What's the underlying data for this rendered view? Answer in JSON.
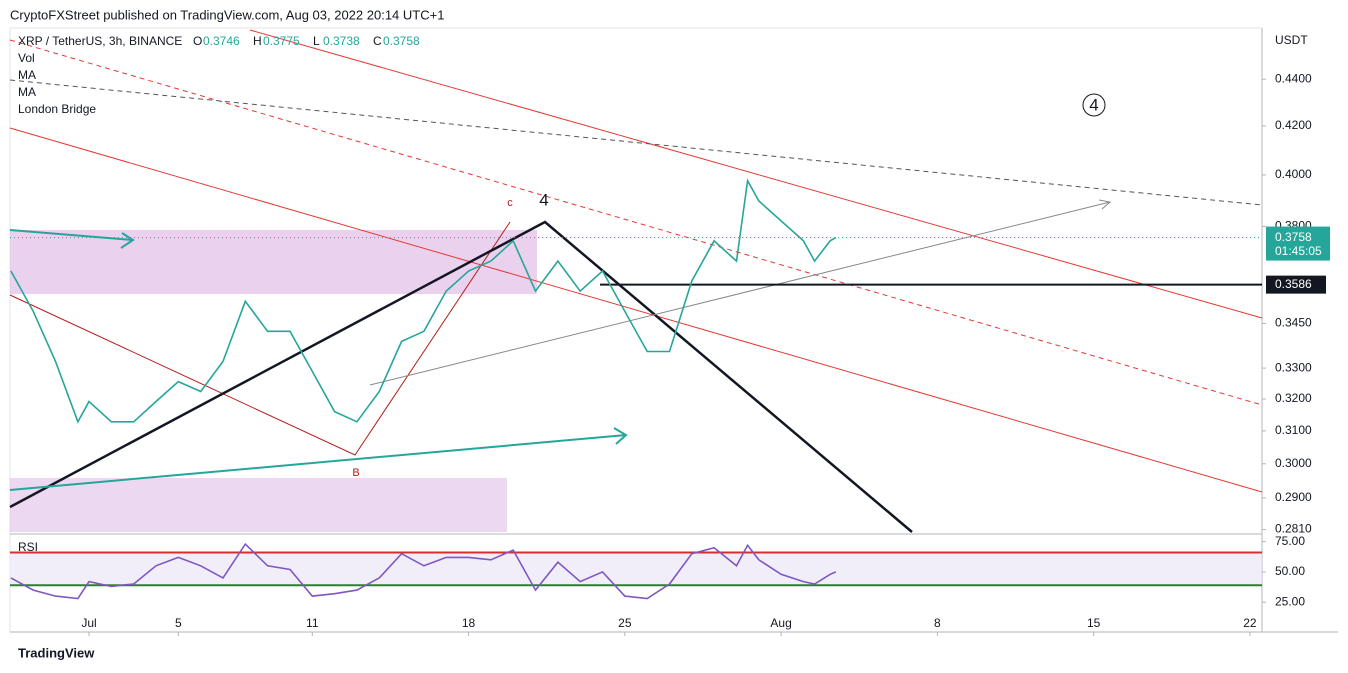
{
  "header": {
    "publisher": "CryptoFXStreet published on TradingView.com, Aug 03, 2022 20:14 UTC+1"
  },
  "legend": {
    "symbol": "XRP / TetherUS, 3h, BINANCE",
    "ohlc": [
      {
        "label": "O",
        "value": "0.3746"
      },
      {
        "label": "H",
        "value": "0.3775"
      },
      {
        "label": "L",
        "value": "0.3738"
      },
      {
        "label": "C",
        "value": "0.3758"
      }
    ],
    "indicators": [
      "Vol",
      "MA",
      "MA",
      "London Bridge"
    ]
  },
  "chart_data": [
    {
      "type": "line",
      "y_axis_title": "USDT",
      "color": "#26a69a",
      "log_scale": true,
      "x": [
        -2.5,
        -1.5,
        -0.5,
        0.5,
        1,
        2,
        3,
        4,
        5,
        6,
        7,
        8,
        9,
        10,
        11,
        12,
        13,
        14,
        15,
        16,
        17,
        18,
        19,
        20,
        21,
        22,
        23,
        24,
        25,
        26,
        27,
        28,
        29,
        30,
        30.5,
        31,
        32,
        33,
        33.5,
        34.2,
        34.45
      ],
      "values": [
        0.3635,
        0.3492,
        0.3322,
        0.3128,
        0.3192,
        0.3128,
        0.3128,
        0.3192,
        0.3256,
        0.3224,
        0.3322,
        0.3527,
        0.3423,
        0.3423,
        0.3289,
        0.316,
        0.3128,
        0.3224,
        0.3389,
        0.3423,
        0.3563,
        0.3635,
        0.3671,
        0.3746,
        0.3563,
        0.3671,
        0.3563,
        0.3635,
        0.3492,
        0.3355,
        0.3355,
        0.3599,
        0.3746,
        0.3671,
        0.3977,
        0.3898,
        0.3821,
        0.3746,
        0.3671,
        0.3746,
        0.3758
      ],
      "xlim": [
        -2.54,
        53.54
      ],
      "ylim": [
        0.2803,
        0.4621
      ],
      "yticks": [
        {
          "value": 0.44,
          "label": "0.4400"
        },
        {
          "value": 0.42,
          "label": "0.4200"
        },
        {
          "value": 0.4,
          "label": "0.4000"
        },
        {
          "value": 0.38,
          "label": "0.3800"
        },
        {
          "value": 0.345,
          "label": "0.3450"
        },
        {
          "value": 0.33,
          "label": "0.3300"
        },
        {
          "value": 0.32,
          "label": "0.3200"
        },
        {
          "value": 0.31,
          "label": "0.3100"
        },
        {
          "value": 0.3,
          "label": "0.3000"
        },
        {
          "value": 0.29,
          "label": "0.2900"
        },
        {
          "value": 0.281,
          "label": "0.2810"
        }
      ],
      "last_price": {
        "value": 0.3758,
        "label": "0.3758"
      },
      "countdown": "01:45:05",
      "level": {
        "value": 0.3586,
        "label": "0.3586"
      },
      "annotations": [
        "c",
        "4",
        "B",
        "4"
      ]
    },
    {
      "type": "line",
      "title": "RSI",
      "color": "#7e57c2",
      "x": [
        -2.5,
        -1.5,
        -0.5,
        0.5,
        1,
        2,
        3,
        4,
        5,
        6,
        7,
        8,
        9,
        10,
        11,
        12,
        13,
        14,
        15,
        16,
        17,
        18,
        19,
        20,
        21,
        22,
        23,
        24,
        25,
        26,
        27,
        28,
        29,
        30,
        30.5,
        31,
        32,
        33,
        33.5,
        34.2,
        34.45
      ],
      "values": [
        45,
        35,
        30,
        28,
        42,
        38,
        40,
        55,
        62,
        55,
        45,
        73,
        55,
        52,
        30,
        32,
        35,
        45,
        65,
        55,
        62,
        62,
        60,
        68,
        35,
        58,
        42,
        50,
        30,
        28,
        40,
        65,
        70,
        55,
        72,
        60,
        48,
        42,
        40,
        48,
        50
      ],
      "xlim": [
        -2.54,
        53.54
      ],
      "ylim": [
        2,
        78
      ],
      "yticks": [
        {
          "value": 75,
          "label": "75.00"
        },
        {
          "value": 50,
          "label": "50.00"
        },
        {
          "value": 25,
          "label": "25.00"
        }
      ],
      "bands": [
        66,
        39
      ],
      "xticks": [
        {
          "value": 1,
          "label": "Jul"
        },
        5,
        11,
        18,
        25,
        {
          "value": 32,
          "label": "Aug"
        },
        {
          "value": 39,
          "label": "8"
        },
        {
          "value": 46,
          "label": "15"
        },
        {
          "value": 53,
          "label": "22"
        }
      ]
    }
  ],
  "footer": {
    "logo": "TradingView"
  }
}
